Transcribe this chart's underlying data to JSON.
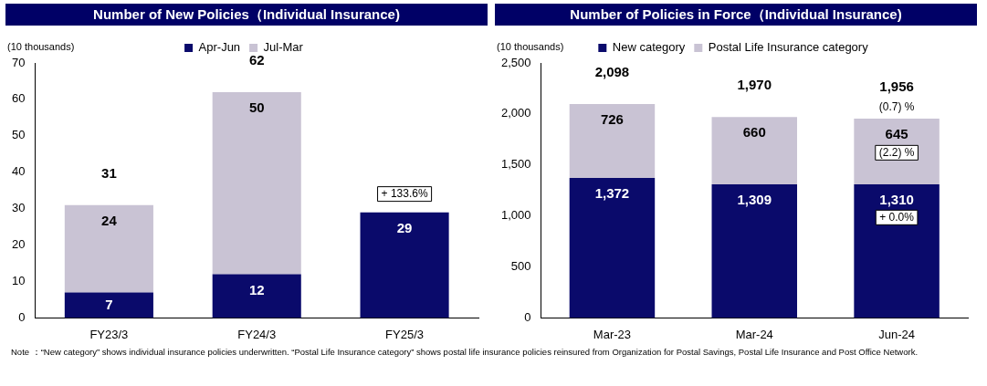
{
  "chart_data": [
    {
      "type": "bar",
      "title": "Number of New Policies（Individual Insurance)",
      "ylabel": "(10 thousands)",
      "categories": [
        "FY23/3",
        "FY24/3",
        "FY25/3"
      ],
      "stacked": true,
      "legend": "top",
      "data_labels": true,
      "series": [
        {
          "name": "Apr-Jun",
          "color": "#0a0a6b",
          "values": [
            7,
            12,
            29
          ]
        },
        {
          "name": "Jul-Mar",
          "color": "#c9c3d4",
          "values": [
            24,
            50,
            null
          ]
        }
      ],
      "totals": [
        "31",
        "62",
        null
      ],
      "ylim": [
        0,
        70
      ],
      "yticks": [
        0,
        10,
        20,
        30,
        40,
        50,
        60,
        70
      ],
      "annotations": [
        "+ 133.6%"
      ]
    },
    {
      "type": "bar",
      "title": "Number of Policies in Force（Individual Insurance)",
      "ylabel": "(10 thousands)",
      "categories": [
        "Mar-23",
        "Mar-24",
        "Jun-24"
      ],
      "stacked": true,
      "legend": "top",
      "series": [
        {
          "name": "New category",
          "color": "#0a0a6b",
          "values": [
            1372,
            1309,
            1310
          ],
          "value_labels": [
            "1,372",
            "1,309",
            "1,310"
          ]
        },
        {
          "name": "Postal Life Insurance category",
          "color": "#c9c3d4",
          "values": [
            726,
            660,
            645
          ],
          "value_labels": [
            "726",
            "660",
            "645"
          ]
        }
      ],
      "totals": [
        "2,098",
        "1,970",
        "1,956"
      ],
      "ylim": [
        0,
        2500
      ],
      "yticks": [
        0,
        {
          "value": 500,
          "label": "500"
        },
        {
          "value": 1000,
          "label": "1,000"
        },
        {
          "value": 1500,
          "label": "1,500"
        },
        {
          "value": 2000,
          "label": "2,000"
        },
        {
          "value": 2500,
          "label": "2,500"
        }
      ],
      "annotations": [
        "(0.7) %",
        "(2.2) %",
        "+ 0.0%",
        "Note ：“New category” shows individual insurance policies underwritten. “Postal Life Insurance category” shows postal life insurance policies reinsured from Organization for Postal Savings, Postal Life Insurance and Post Office Network."
      ]
    }
  ]
}
